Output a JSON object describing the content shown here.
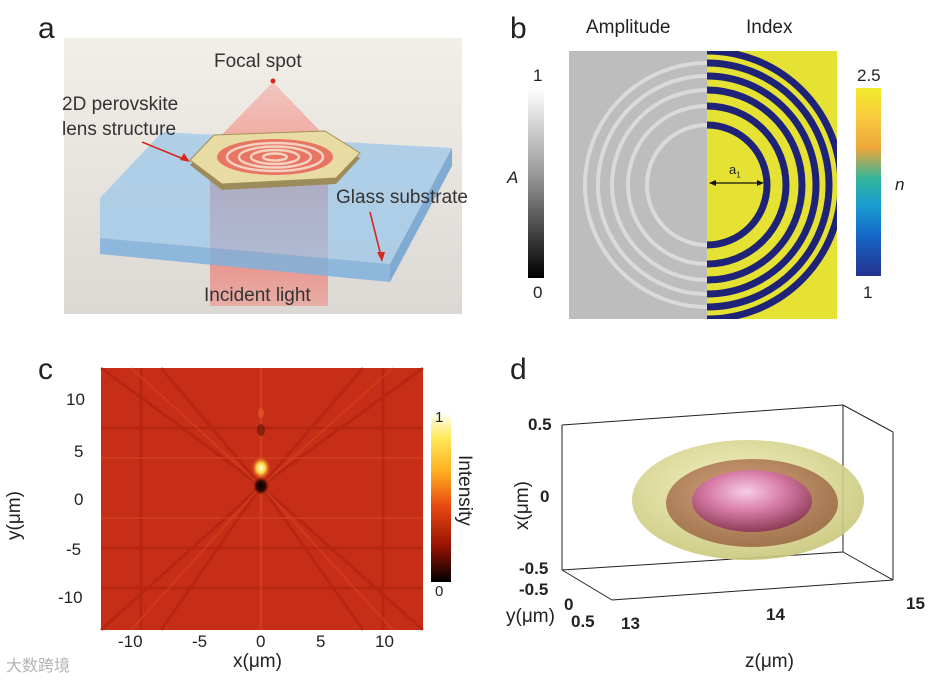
{
  "panels": {
    "a": {
      "letter": "a",
      "labels": {
        "focal_spot": "Focal spot",
        "lens_line1": "2D perovskite",
        "lens_line2": "lens structure",
        "substrate": "Glass substrate",
        "incident": "Incident light"
      }
    },
    "b": {
      "letter": "b",
      "amplitude_title": "Amplitude",
      "index_title": "Index",
      "amp_colorbar": {
        "label": "A",
        "max": "1",
        "min": "0"
      },
      "index_colorbar": {
        "label": "n",
        "max": "2.5",
        "min": "1"
      },
      "radius_label": "a",
      "radius_sub": "1"
    },
    "c": {
      "letter": "c",
      "ylabel": "y(μm)",
      "xlabel": "x(μm)",
      "colorbar_label": "Intensity",
      "colorbar_max": "1",
      "colorbar_min": "0",
      "yticks": [
        "10",
        "5",
        "0",
        "-5",
        "-10"
      ],
      "xticks": [
        "-10",
        "-5",
        "0",
        "5",
        "10"
      ]
    },
    "d": {
      "letter": "d",
      "xlabel": "x(μm)",
      "ylabel": "y(μm)",
      "zlabel": "z(μm)",
      "xticks": [
        "0.5",
        "0",
        "-0.5"
      ],
      "yticks": [
        "-0.5",
        "0",
        "0.5"
      ],
      "zticks": [
        "13",
        "14",
        "15"
      ]
    }
  },
  "watermark": "大数跨境",
  "colors": {
    "hot_dark": "#b52012",
    "hot_mid": "#d23a1e",
    "navy": "#1f2378",
    "yellow": "#e6e234",
    "gray": "#bdbdbd"
  }
}
